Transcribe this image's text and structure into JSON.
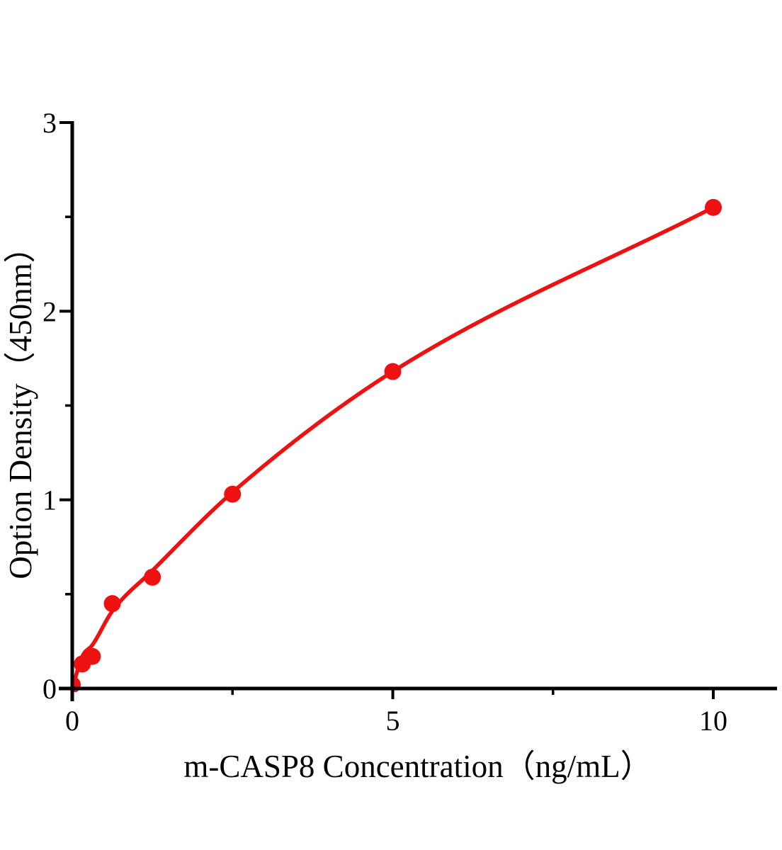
{
  "page": {
    "background": "#ffffff"
  },
  "colors": {
    "curve": "#ee1111",
    "axis": "#000000",
    "text": "#000000"
  },
  "chart_data": {
    "type": "scatter",
    "title": "",
    "xlabel": "m-CASP8 Concentration（ng/mL）",
    "ylabel": "Option Density（450nm）",
    "xlim": [
      0,
      10
    ],
    "ylim": [
      0,
      3
    ],
    "grid": false,
    "legend": false,
    "x_axis": {
      "major_ticks": [
        0,
        5,
        10
      ],
      "major_tick_labels": [
        "0",
        "5",
        "10"
      ],
      "minor_ticks": [
        2.5,
        7.5
      ]
    },
    "y_axis": {
      "major_ticks": [
        0,
        1,
        2,
        3
      ],
      "major_tick_labels": [
        "0",
        "1",
        "2",
        "3"
      ],
      "minor_ticks": [
        0.5,
        1.5,
        2.5
      ]
    },
    "series": [
      {
        "marker": "filled-circle",
        "color": "#ee1111",
        "points": [
          {
            "x": 0,
            "y": 0.02
          },
          {
            "x": 0.156,
            "y": 0.13
          },
          {
            "x": 0.313,
            "y": 0.17
          },
          {
            "x": 0.625,
            "y": 0.45
          },
          {
            "x": 1.25,
            "y": 0.59
          },
          {
            "x": 2.5,
            "y": 1.03
          },
          {
            "x": 5,
            "y": 1.68
          },
          {
            "x": 10,
            "y": 2.55
          }
        ],
        "fit_curve": {
          "type": "smooth-monotone",
          "anchors": [
            [
              0,
              0
            ],
            [
              0.156,
              0.17
            ],
            [
              0.313,
              0.23
            ],
            [
              0.625,
              0.41
            ],
            [
              1.25,
              0.625
            ],
            [
              2.5,
              1.04
            ],
            [
              5,
              1.68
            ],
            [
              10,
              2.55
            ]
          ]
        }
      }
    ]
  }
}
